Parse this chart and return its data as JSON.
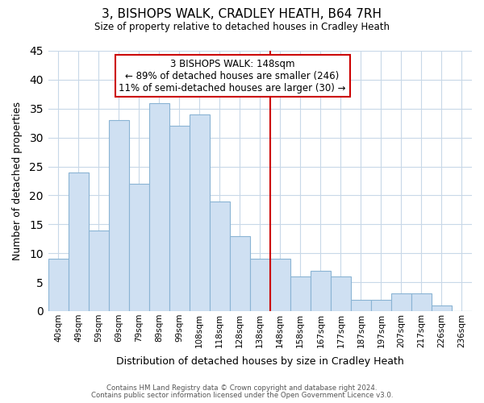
{
  "title": "3, BISHOPS WALK, CRADLEY HEATH, B64 7RH",
  "subtitle": "Size of property relative to detached houses in Cradley Heath",
  "xlabel": "Distribution of detached houses by size in Cradley Heath",
  "ylabel": "Number of detached properties",
  "bar_labels": [
    "40sqm",
    "49sqm",
    "59sqm",
    "69sqm",
    "79sqm",
    "89sqm",
    "99sqm",
    "108sqm",
    "118sqm",
    "128sqm",
    "138sqm",
    "148sqm",
    "158sqm",
    "167sqm",
    "177sqm",
    "187sqm",
    "197sqm",
    "207sqm",
    "217sqm",
    "226sqm",
    "236sqm"
  ],
  "bar_values": [
    9,
    24,
    14,
    33,
    22,
    36,
    32,
    34,
    19,
    13,
    9,
    9,
    6,
    7,
    6,
    2,
    2,
    3,
    3,
    1,
    0
  ],
  "bar_color": "#cfe0f2",
  "bar_edgecolor": "#8ab4d4",
  "reference_line_x_label": "148sqm",
  "reference_line_color": "#cc0000",
  "annotation_title": "3 BISHOPS WALK: 148sqm",
  "annotation_line1": "← 89% of detached houses are smaller (246)",
  "annotation_line2": "11% of semi-detached houses are larger (30) →",
  "annotation_box_color": "#ffffff",
  "annotation_box_edgecolor": "#cc0000",
  "ylim": [
    0,
    45
  ],
  "yticks": [
    0,
    5,
    10,
    15,
    20,
    25,
    30,
    35,
    40,
    45
  ],
  "footnote1": "Contains HM Land Registry data © Crown copyright and database right 2024.",
  "footnote2": "Contains public sector information licensed under the Open Government Licence v3.0.",
  "background_color": "#ffffff",
  "grid_color": "#c8d8e8"
}
